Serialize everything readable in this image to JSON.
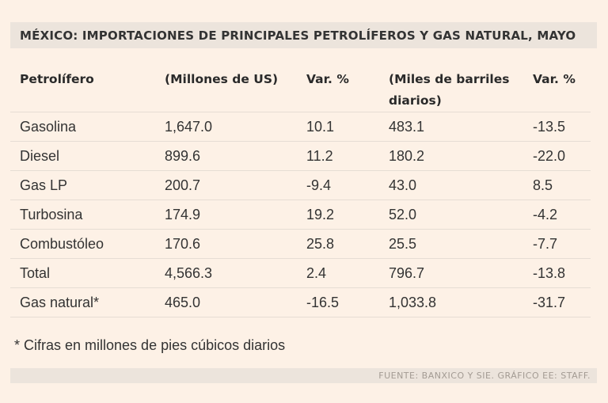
{
  "title": "MÉXICO: IMPORTACIONES DE PRINCIPALES PETROLÍFEROS Y GAS NATURAL, MAYO",
  "table": {
    "headers": [
      "Petrolífero",
      "(Millones de US)",
      "Var. %",
      "(Miles de barriles diarios)",
      "Var. %"
    ],
    "rows": [
      [
        "Gasolina",
        "1,647.0",
        "10.1",
        "483.1",
        "-13.5"
      ],
      [
        "Diesel",
        "899.6",
        "11.2",
        "180.2",
        "-22.0"
      ],
      [
        "Gas LP",
        "200.7",
        "-9.4",
        "43.0",
        "8.5"
      ],
      [
        "Turbosina",
        "174.9",
        "19.2",
        "52.0",
        "-4.2"
      ],
      [
        "Combustóleo",
        "170.6",
        "25.8",
        "25.5",
        "-7.7"
      ],
      [
        "Total",
        "4,566.3",
        "2.4",
        "796.7",
        "-13.8"
      ],
      [
        "Gas natural*",
        "465.0",
        "-16.5",
        "1,033.8",
        "-31.7"
      ]
    ]
  },
  "footnote": "* Cifras en millones de pies cúbicos diarios",
  "source": "FUENTE: BANXICO Y SIE. GRÁFICO EE: STAFF."
}
